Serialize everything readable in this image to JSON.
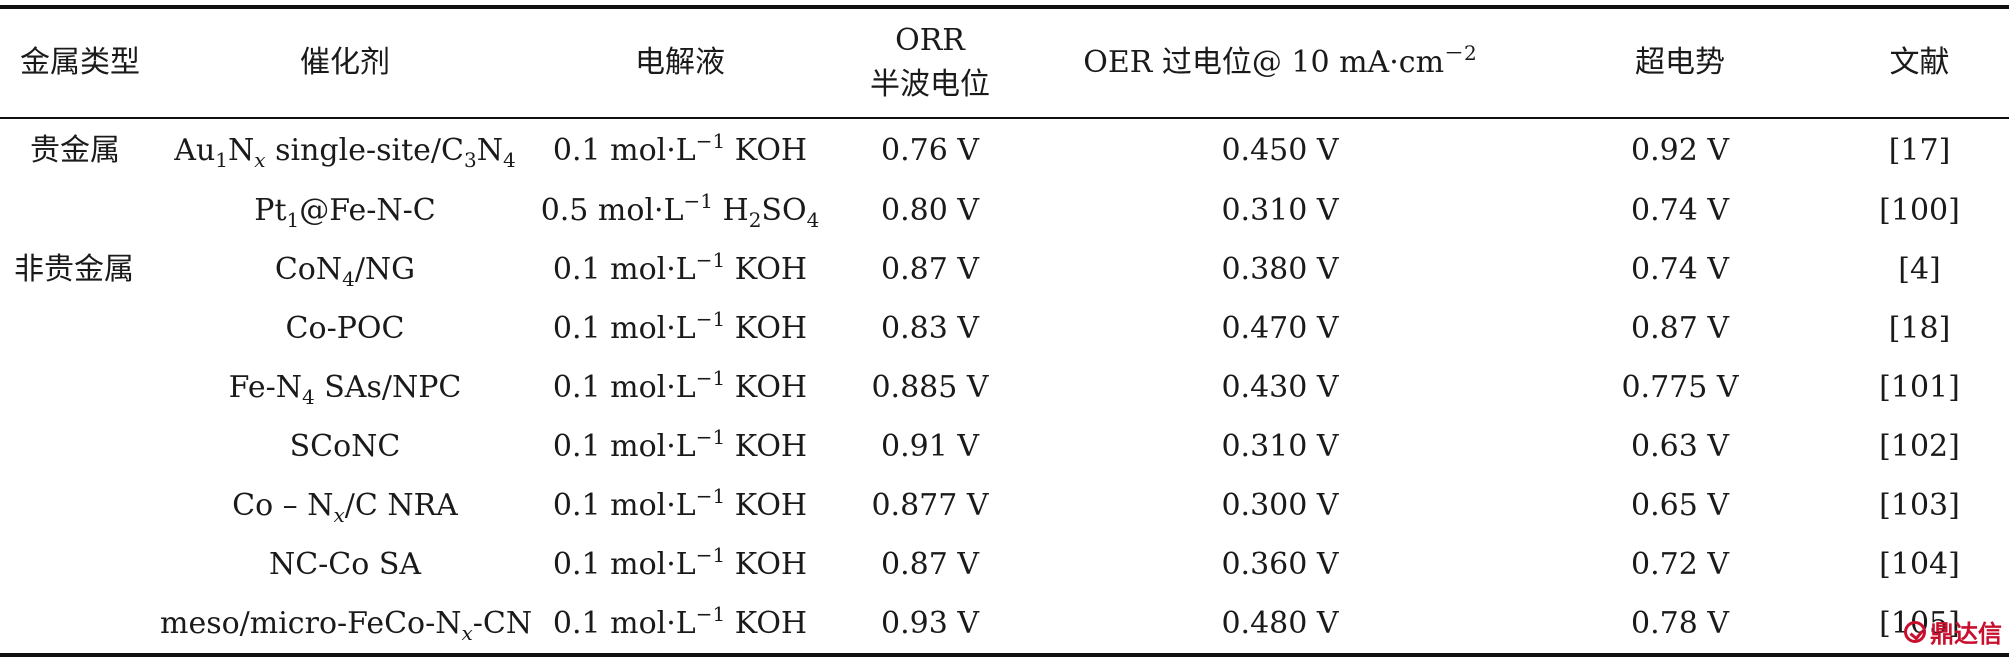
{
  "table": {
    "headers": {
      "metal_type": "金属类型",
      "catalyst": "催化剂",
      "electrolyte": "电解液",
      "orr_line1": "ORR",
      "orr_line2": "半波电位",
      "oer_main": "OER 过电位@ 10 mA·cm",
      "oer_exp": "－2",
      "overpotential": "超电势",
      "reference": "文献"
    },
    "metal_groups": {
      "noble": "贵金属",
      "non_noble": "非贵金属"
    },
    "electrolyte_parts": {
      "koh_main": "0.1 mol·L",
      "koh_exp": "−1",
      "koh_tail": " KOH",
      "h2so4_main": "0.5 mol·L",
      "h2so4_exp": "−1",
      "h2so4_mid": " H",
      "h2so4_sub1": "2",
      "h2so4_mid2": "SO",
      "h2so4_sub2": "4"
    },
    "catalyst_parts": {
      "r1_a": "Au",
      "r1_b": "1",
      "r1_c": "N",
      "r1_d": "x",
      "r1_e": " single-site/C",
      "r1_f": "3",
      "r1_g": "N",
      "r1_h": "4",
      "r2_a": "Pt",
      "r2_b": "1",
      "r2_c": "@Fe-N-C",
      "r3_a": "CoN",
      "r3_b": "4",
      "r3_c": "/NG",
      "r4": "Co-POC",
      "r5_a": "Fe-N",
      "r5_b": "4",
      "r5_c": " SAs/NPC",
      "r6": "SCoNC",
      "r7_a": "Co – N",
      "r7_b": "x",
      "r7_c": "/C NRA",
      "r8": "NC-Co SA",
      "r9_a": "meso/micro-FeCo-N",
      "r9_b": "x",
      "r9_c": "-CN"
    },
    "rows": [
      {
        "orr": "0.76 V",
        "oer": "0.450 V",
        "over": "0.92 V",
        "ref": "[17]"
      },
      {
        "orr": "0.80 V",
        "oer": "0.310 V",
        "over": "0.74 V",
        "ref": "[100]"
      },
      {
        "orr": "0.87 V",
        "oer": "0.380 V",
        "over": "0.74 V",
        "ref": "[4]"
      },
      {
        "orr": "0.83 V",
        "oer": "0.470 V",
        "over": "0.87 V",
        "ref": "[18]"
      },
      {
        "orr": "0.885 V",
        "oer": "0.430 V",
        "over": "0.775 V",
        "ref": "[101]"
      },
      {
        "orr": "0.91 V",
        "oer": "0.310 V",
        "over": "0.63 V",
        "ref": "[102]"
      },
      {
        "orr": "0.877 V",
        "oer": "0.300 V",
        "over": "0.65 V",
        "ref": "[103]"
      },
      {
        "orr": "0.87 V",
        "oer": "0.360 V",
        "over": "0.72 V",
        "ref": "[104]"
      },
      {
        "orr": "0.93 V",
        "oer": "0.480 V",
        "over": "0.78 V",
        "ref": "[105]"
      }
    ]
  },
  "watermark": {
    "text": "鼎达信",
    "color": "#c8102e"
  }
}
